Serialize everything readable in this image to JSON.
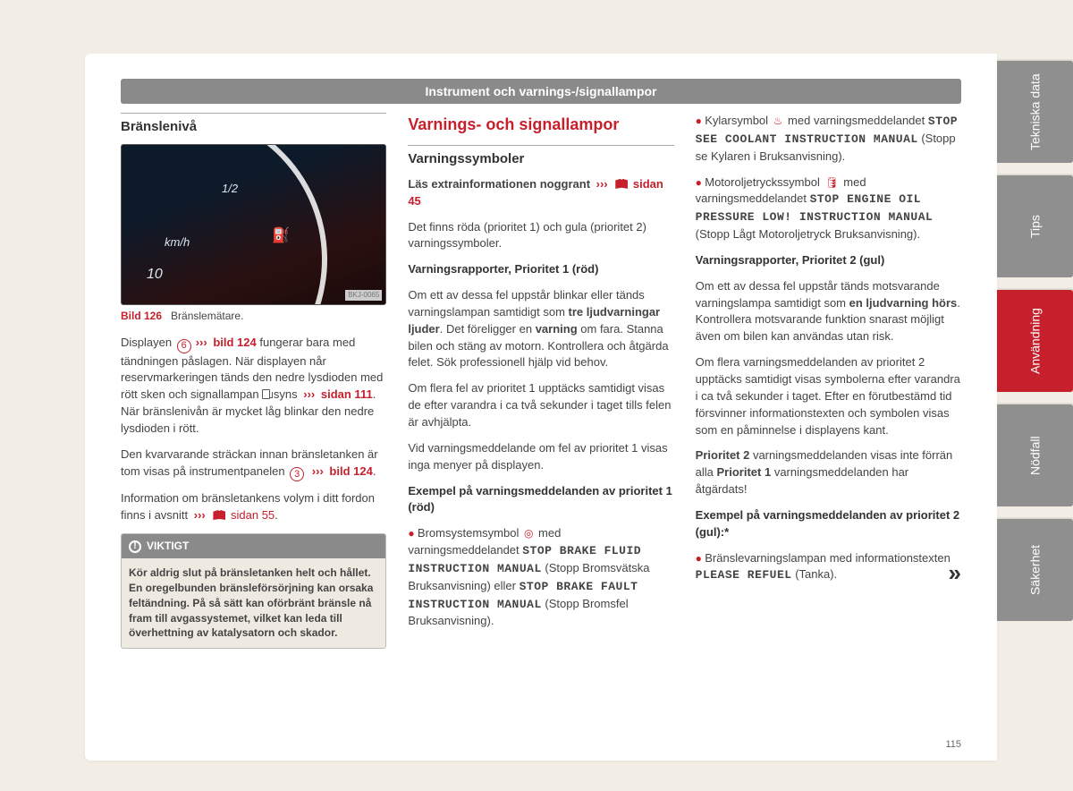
{
  "header": {
    "title": "Instrument och varnings-/signallampor"
  },
  "col1": {
    "heading": "Bränslenivå",
    "figure": {
      "kmh": "km/h",
      "ten": "10",
      "half": "1/2",
      "corner": "BKJ-0065"
    },
    "caption": {
      "bild": "Bild 126",
      "text": "Bränslemätare."
    },
    "p1a": "Displayen ",
    "p1_circ": "6",
    "p1_link": "bild 124",
    "p1b": " fungerar bara med tändningen påslagen. När displayen når reservmarkeringen tänds den nedre lysdioden med rött sken och signallampan ",
    "p1c": " syns ",
    "p1_link2": "sidan 111",
    "p1d": ". När bränslenivån är mycket låg blinkar den nedre lysdioden i rött.",
    "p2a": "Den kvarvarande sträckan innan bränsletanken är tom visas på instrumentpanelen ",
    "p2_circ": "3",
    "p2_link": "bild 124",
    "p2b": ".",
    "p3a": "Information om bränsletankens volym i ditt fordon finns i avsnitt ",
    "p3_link": "sidan 55",
    "p3b": ".",
    "important": {
      "label": "VIKTIGT",
      "text": "Kör aldrig slut på bränsletanken helt och hållet. En oregelbunden bränsleförsörjning kan orsaka feltändning. På så sätt kan oförbränt bränsle nå fram till avgassystemet, vilket kan leda till överhettning av katalysatorn och skador."
    }
  },
  "col2": {
    "main_heading": "Varnings- och signallampor",
    "sub_heading": "Varningssymboler",
    "p1a": "Läs extrainformationen noggrant ",
    "p1_link": "sidan 45",
    "p2": "Det finns röda (prioritet 1) och gula (prioritet 2) varningssymboler.",
    "h1": "Varningsrapporter, Prioritet 1 (röd)",
    "p3a": "Om ett av dessa fel uppstår blinkar eller tänds varningslampan samtidigt som ",
    "p3b": "tre ljudvarningar ljuder",
    "p3c": ". Det föreligger en ",
    "p3d": "varning",
    "p3e": " om fara. Stanna bilen och stäng av motorn. Kontrollera och åtgärda felet. Sök professionell hjälp vid behov.",
    "p4": "Om flera fel av prioritet 1 upptäcks samtidigt visas de efter varandra i ca två sekunder i taget tills felen är avhjälpta.",
    "p5": "Vid varningsmeddelande om fel av prioritet 1 visas inga menyer på displayen.",
    "h2": "Exempel på varningsmeddelanden av prioritet 1 (röd)",
    "b1a": "Bromsystemsymbol ",
    "b1b": " med varningsmeddelandet ",
    "b1_mono1": "STOP BRAKE FLUID INSTRUCTION MANUAL",
    "b1c": " (Stopp Bromsvätska Bruksanvisning) eller ",
    "b1_mono2": "STOP BRAKE FAULT INSTRUCTION MANUAL",
    "b1d": " (Stopp Bromsfel Bruksanvisning)."
  },
  "col3": {
    "b1a": "Kylarsymbol ",
    "b1b": " med varningsmeddelandet ",
    "b1_mono": "STOP SEE COOLANT INSTRUCTION MANUAL",
    "b1c": " (Stopp se Kylaren i Bruksanvisning).",
    "b2a": "Motoroljetryckssymbol ",
    "b2b": " med varningsmeddelandet ",
    "b2_mono": "STOP ENGINE OIL PRESSURE LOW! INSTRUCTION MANUAL",
    "b2c": " (Stopp Lågt Motoroljetryck Bruksanvisning).",
    "h1": "Varningsrapporter, Prioritet 2 (gul)",
    "p1a": "Om ett av dessa fel uppstår tänds motsvarande varningslampa samtidigt som ",
    "p1b": "en ljudvarning hörs",
    "p1c": ". Kontrollera motsvarande funktion snarast möjligt även om bilen kan användas utan risk.",
    "p2": "Om flera varningsmeddelanden av prioritet 2 upptäcks samtidigt visas symbolerna efter varandra i ca två sekunder i taget. Efter en förutbestämd tid försvinner informationstexten och symbolen visas som en påminnelse i displayens kant.",
    "p3a": "Prioritet 2",
    "p3b": " varningsmeddelanden visas inte förrän alla ",
    "p3c": "Prioritet 1",
    "p3d": " varningsmeddelanden har åtgärdats!",
    "h2": "Exempel på varningsmeddelanden av prioritet 2 (gul):*",
    "b3a": "Bränslevarningslampan med informationstexten ",
    "b3_mono": "PLEASE REFUEL",
    "b3b": " (Tanka)."
  },
  "page_number": "115",
  "tabs": [
    {
      "label": "Tekniska data",
      "active": false
    },
    {
      "label": "Tips",
      "active": false
    },
    {
      "label": "Användning",
      "active": true
    },
    {
      "label": "Nödfall",
      "active": false
    },
    {
      "label": "Säkerhet",
      "active": false
    }
  ]
}
